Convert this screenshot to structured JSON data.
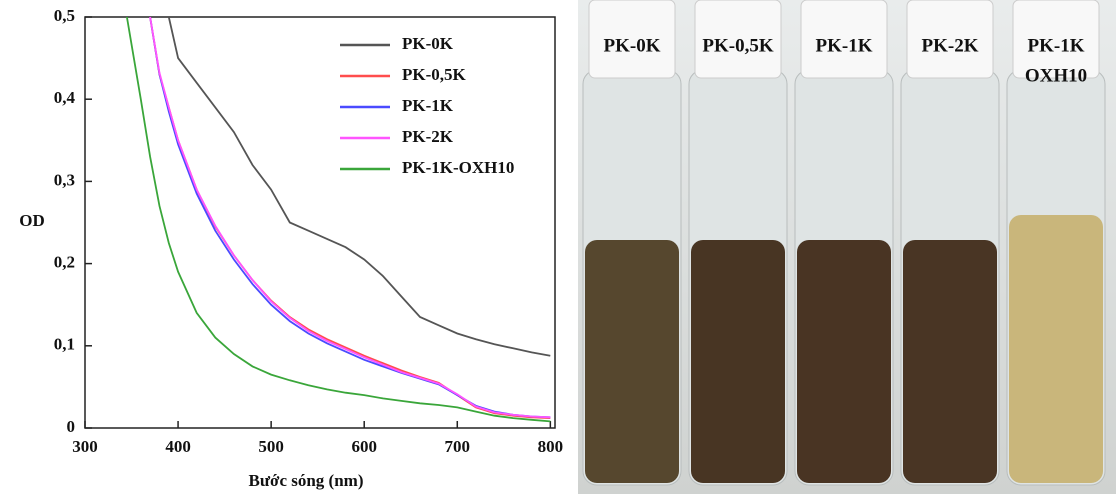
{
  "chart_data": {
    "type": "line",
    "x_label": "Bước sóng (nm)",
    "y_label": "OD",
    "xlim": [
      300,
      805
    ],
    "ylim": [
      0,
      0.5
    ],
    "xticks": [
      300,
      400,
      500,
      600,
      700,
      800
    ],
    "yticks": [
      0,
      {
        "value": 0.1,
        "label": "0,1"
      },
      {
        "value": 0.2,
        "label": "0,2"
      },
      {
        "value": 0.3,
        "label": "0,3"
      },
      {
        "value": 0.4,
        "label": "0,4"
      },
      {
        "value": 0.5,
        "label": "0,5"
      }
    ],
    "legend": "upper right",
    "x": [
      345,
      360,
      370,
      380,
      390,
      400,
      420,
      440,
      460,
      480,
      500,
      520,
      540,
      560,
      580,
      600,
      620,
      640,
      660,
      680,
      700,
      720,
      740,
      760,
      780,
      800
    ],
    "series": [
      {
        "name": "PK-0K",
        "color": "#555555",
        "values": [
          null,
          null,
          null,
          null,
          0.5,
          0.45,
          0.42,
          0.39,
          0.36,
          0.32,
          0.29,
          0.25,
          0.24,
          0.23,
          0.22,
          0.205,
          0.185,
          0.16,
          0.135,
          0.125,
          0.115,
          0.108,
          0.102,
          0.097,
          0.092,
          0.088
        ]
      },
      {
        "name": "PK-0,5K",
        "color": "#ff4d4d",
        "values": [
          null,
          null,
          0.5,
          0.43,
          0.39,
          0.35,
          0.29,
          0.245,
          0.21,
          0.18,
          0.155,
          0.135,
          0.12,
          0.108,
          0.098,
          0.088,
          0.079,
          0.07,
          0.062,
          0.055,
          0.04,
          0.025,
          0.018,
          0.015,
          0.013,
          0.012
        ]
      },
      {
        "name": "PK-1K",
        "color": "#4a4aff",
        "values": [
          null,
          null,
          0.5,
          0.43,
          0.385,
          0.345,
          0.285,
          0.24,
          0.205,
          0.175,
          0.15,
          0.13,
          0.115,
          0.103,
          0.093,
          0.083,
          0.075,
          0.067,
          0.06,
          0.053,
          0.04,
          0.027,
          0.02,
          0.016,
          0.014,
          0.013
        ]
      },
      {
        "name": "PK-2K",
        "color": "#ff55ff",
        "values": [
          null,
          null,
          0.5,
          0.432,
          0.39,
          0.35,
          0.29,
          0.246,
          0.21,
          0.18,
          0.154,
          0.134,
          0.118,
          0.106,
          0.096,
          0.086,
          0.077,
          0.068,
          0.061,
          0.054,
          0.041,
          0.026,
          0.019,
          0.016,
          0.014,
          0.013
        ]
      },
      {
        "name": "PK-1K-OXH10",
        "color": "#3aa63a",
        "values": [
          0.5,
          0.4,
          0.33,
          0.27,
          0.225,
          0.19,
          0.14,
          0.11,
          0.09,
          0.075,
          0.065,
          0.058,
          0.052,
          0.047,
          0.043,
          0.04,
          0.036,
          0.033,
          0.03,
          0.028,
          0.025,
          0.02,
          0.015,
          0.012,
          0.01,
          0.008
        ]
      }
    ]
  },
  "photo": {
    "labels": [
      [
        "PK-0K"
      ],
      [
        "PK-0,5K"
      ],
      [
        "PK-1K"
      ],
      [
        "PK-2K"
      ],
      [
        "PK-1K",
        "OXH10"
      ]
    ]
  }
}
